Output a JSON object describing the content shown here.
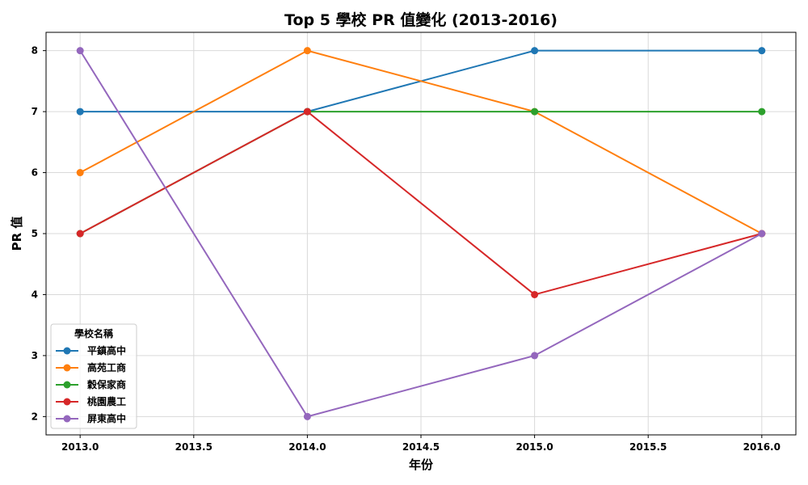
{
  "chart_data": {
    "type": "line",
    "title": "Top 5 學校 PR 值變化 (2013-2016)",
    "xlabel": "年份",
    "ylabel": "PR 值",
    "x": [
      2013,
      2014,
      2015,
      2016
    ],
    "xlim": [
      2012.85,
      2016.15
    ],
    "ylim": [
      1.7,
      8.3
    ],
    "xticks": [
      2013.0,
      2013.5,
      2014.0,
      2014.5,
      2015.0,
      2015.5,
      2016.0
    ],
    "xtick_labels": [
      "2013.0",
      "2013.5",
      "2014.0",
      "2014.5",
      "2015.0",
      "2015.5",
      "2016.0"
    ],
    "yticks": [
      2,
      3,
      4,
      5,
      6,
      7,
      8
    ],
    "ytick_labels": [
      "2",
      "3",
      "4",
      "5",
      "6",
      "7",
      "8"
    ],
    "grid": true,
    "legend_title": "學校名稱",
    "legend_position": "lower-left",
    "series": [
      {
        "name": "平鎮高中",
        "color": "#1f77b4",
        "values": [
          7,
          7,
          8,
          8
        ]
      },
      {
        "name": "高苑工商",
        "color": "#ff7f0e",
        "values": [
          6,
          8,
          7,
          5
        ]
      },
      {
        "name": "穀保家商",
        "color": "#2ca02c",
        "values": [
          5,
          7,
          7,
          7
        ]
      },
      {
        "name": "桃園農工",
        "color": "#d62728",
        "values": [
          5,
          7,
          4,
          5
        ]
      },
      {
        "name": "屏東高中",
        "color": "#9467bd",
        "values": [
          8,
          2,
          3,
          5
        ]
      }
    ]
  }
}
